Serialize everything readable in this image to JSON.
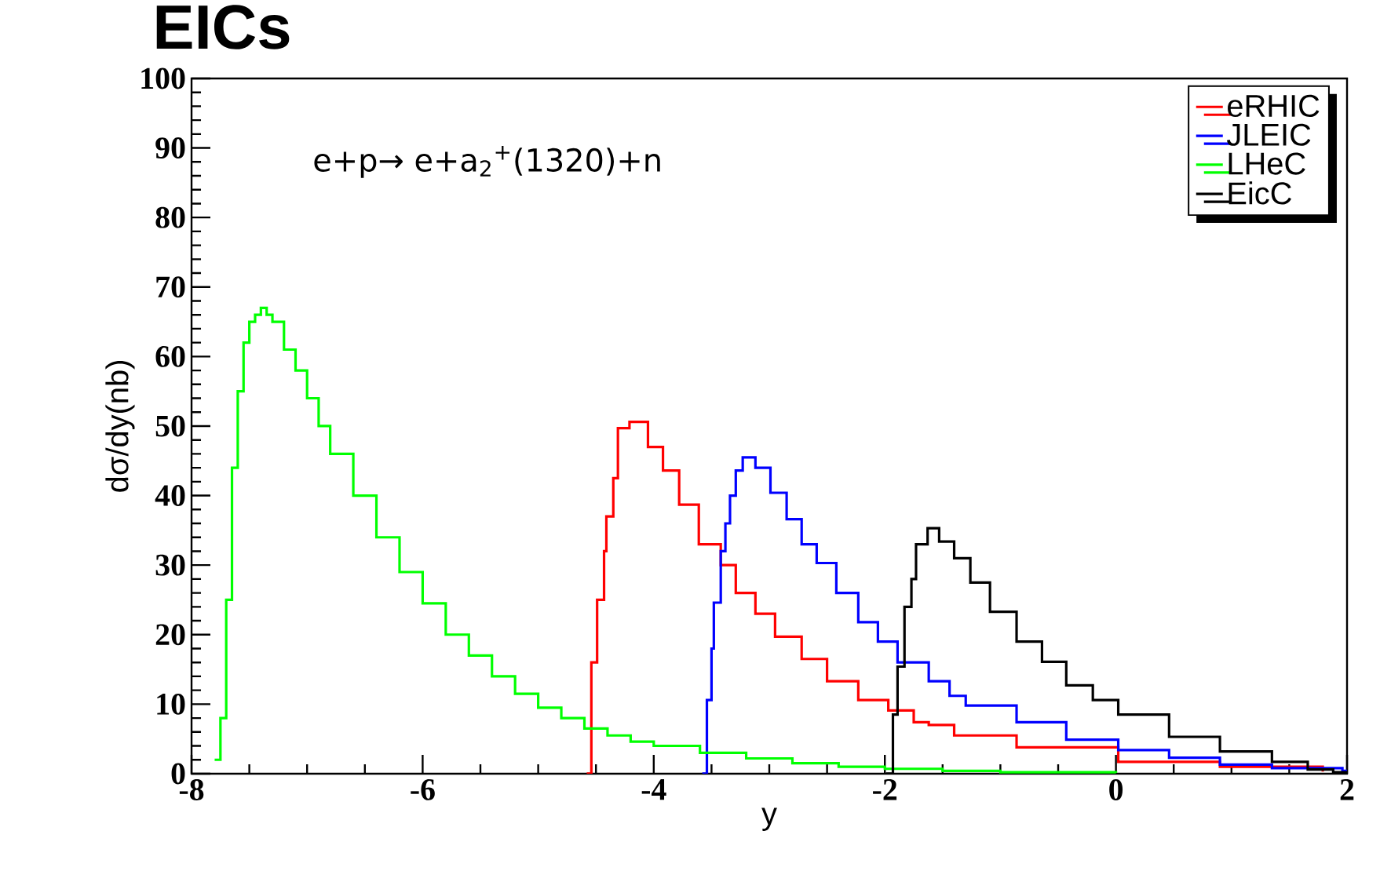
{
  "chart_data": {
    "type": "step",
    "title": "EICs",
    "xlabel": "y",
    "ylabel": "dσ/dy(nb)",
    "annotations": [
      "e+p→ e+a$_{2}$$^{+}$(1320)+n"
    ],
    "xlim": [
      -8,
      2
    ],
    "ylim": [
      0,
      100
    ],
    "xticks": [
      -8,
      -6,
      -4,
      -2,
      0,
      2
    ],
    "yticks": [
      0,
      10,
      20,
      30,
      40,
      50,
      60,
      70,
      80,
      90,
      100
    ],
    "legend": "top right",
    "grid": false,
    "series": [
      {
        "name": "eRHIC",
        "color": "#ff0000",
        "x": [
          -4.58,
          -4.54,
          -4.49,
          -4.43,
          -4.41,
          -4.35,
          -4.31,
          -4.21,
          -4.05,
          -3.92,
          -3.78,
          -3.61,
          -3.42,
          -3.29,
          -3.12,
          -2.95,
          -2.72,
          -2.5,
          -2.23,
          -1.97,
          -1.75,
          -1.62,
          -1.4,
          -0.86,
          0.02,
          0.9,
          1.79
        ],
        "values": [
          0,
          16,
          25,
          32,
          37,
          42.5,
          49.7,
          50.6,
          47,
          43.6,
          38.7,
          33,
          30,
          26,
          23,
          19.7,
          16.5,
          13.3,
          10.6,
          9.1,
          7.4,
          7,
          5.5,
          3.8,
          1.7,
          1,
          0.3
        ]
      },
      {
        "name": "JLEIC",
        "color": "#0000ff",
        "x": [
          -3.58,
          -3.54,
          -3.5,
          -3.48,
          -3.42,
          -3.38,
          -3.34,
          -3.29,
          -3.23,
          -3.12,
          -2.99,
          -2.85,
          -2.72,
          -2.59,
          -2.42,
          -2.23,
          -2.06,
          -1.89,
          -1.62,
          -1.44,
          -1.3,
          -0.86,
          -0.43,
          0.02,
          0.46,
          0.9,
          1.35,
          1.96,
          2
        ],
        "values": [
          0,
          10.6,
          18,
          24.6,
          32,
          36,
          40,
          43.6,
          45.5,
          44,
          40.4,
          36.6,
          33,
          30.3,
          26,
          21.8,
          19,
          16,
          13.3,
          11.2,
          9.8,
          7.4,
          4.9,
          3.4,
          2.3,
          1.3,
          0.8,
          0.4,
          0.4
        ]
      },
      {
        "name": "LHeC",
        "color": "#00ff00",
        "x": [
          -7.8,
          -7.75,
          -7.7,
          -7.65,
          -7.6,
          -7.55,
          -7.5,
          -7.45,
          -7.4,
          -7.35,
          -7.3,
          -7.2,
          -7.1,
          -7,
          -6.9,
          -6.8,
          -6.6,
          -6.4,
          -6.2,
          -6,
          -5.8,
          -5.6,
          -5.4,
          -5.2,
          -5,
          -4.8,
          -4.6,
          -4.4,
          -4.2,
          -4,
          -3.6,
          -3.2,
          -2.8,
          -2.4,
          -2,
          -1.5,
          -1,
          0
        ],
        "values": [
          2,
          8,
          25,
          44,
          55,
          62,
          65,
          66,
          67,
          66,
          65,
          61,
          58,
          54,
          50,
          46,
          40,
          34,
          29,
          24.5,
          20,
          17,
          14,
          11.5,
          9.5,
          8,
          6.5,
          5.5,
          4.6,
          4,
          3,
          2.2,
          1.5,
          1,
          0.7,
          0.4,
          0.2,
          0.1
        ]
      },
      {
        "name": "EicC",
        "color": "#000000",
        "x": [
          -1.99,
          -1.93,
          -1.89,
          -1.83,
          -1.77,
          -1.73,
          -1.63,
          -1.53,
          -1.4,
          -1.26,
          -1.09,
          -0.86,
          -0.64,
          -0.43,
          -0.2,
          0.02,
          0.46,
          0.9,
          1.35,
          1.66,
          1.88,
          2
        ],
        "values": [
          0,
          8.5,
          15.4,
          24,
          28,
          33,
          35.3,
          33.4,
          31,
          27.5,
          23.3,
          19,
          16.1,
          12.7,
          10.6,
          8.5,
          5.3,
          3.2,
          1.7,
          0.6,
          0.2,
          0.2
        ]
      }
    ]
  }
}
